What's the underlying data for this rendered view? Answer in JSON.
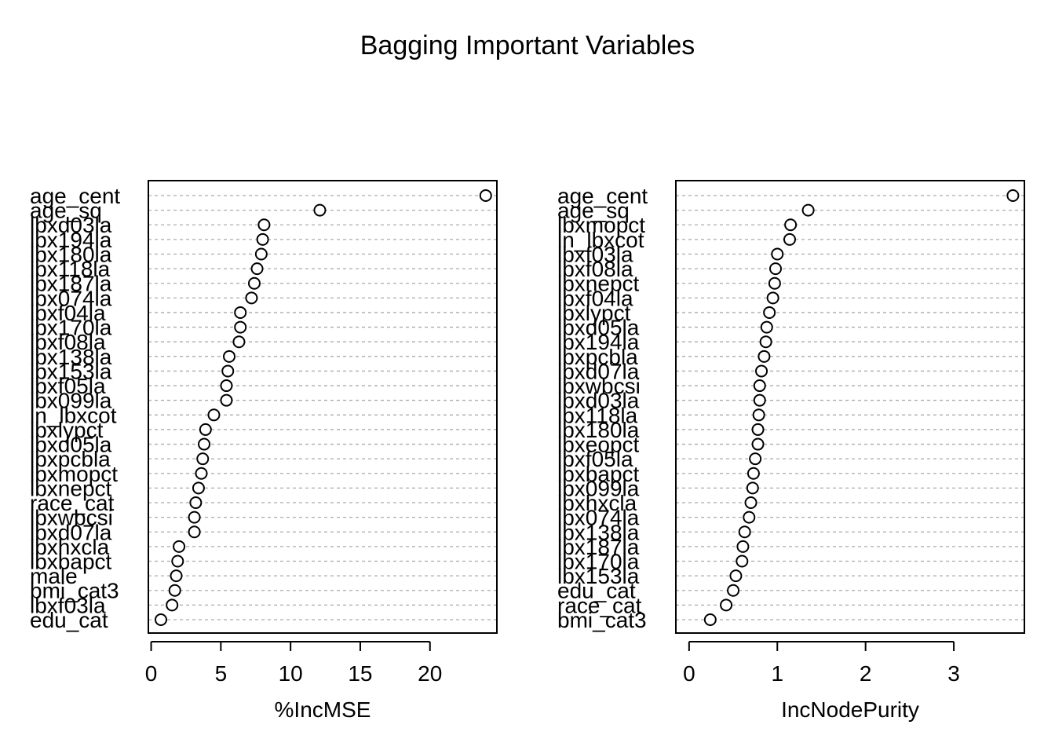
{
  "title": "Bagging Important Variables",
  "chart_data": [
    {
      "type": "scatter",
      "xlabel": "%IncMSE",
      "xlim": [
        -0.2,
        24.8
      ],
      "xticks": [
        0,
        5,
        10,
        15,
        20
      ],
      "grid": "dashed horizontal guide lines",
      "points": [
        {
          "label": "age_cent",
          "value": 24.0
        },
        {
          "label": "age_sq",
          "value": 12.1
        },
        {
          "label": "lbxd03la",
          "value": 8.1
        },
        {
          "label": "lbx194la",
          "value": 8.0
        },
        {
          "label": "lbx180la",
          "value": 7.9
        },
        {
          "label": "lbx118la",
          "value": 7.6
        },
        {
          "label": "lbx187la",
          "value": 7.4
        },
        {
          "label": "lbx074la",
          "value": 7.2
        },
        {
          "label": "lbxf04la",
          "value": 6.4
        },
        {
          "label": "lbx170la",
          "value": 6.4
        },
        {
          "label": "lbxf08la",
          "value": 6.3
        },
        {
          "label": "lbx138la",
          "value": 5.6
        },
        {
          "label": "lbx153la",
          "value": 5.5
        },
        {
          "label": "lbxf05la",
          "value": 5.4
        },
        {
          "label": "lbx099la",
          "value": 5.4
        },
        {
          "label": "ln_lbxcot",
          "value": 4.5
        },
        {
          "label": "lbxlypct",
          "value": 3.9
        },
        {
          "label": "lbxd05la",
          "value": 3.8
        },
        {
          "label": "lbxpcbla",
          "value": 3.7
        },
        {
          "label": "lbxmopct",
          "value": 3.6
        },
        {
          "label": "lbxnepct",
          "value": 3.4
        },
        {
          "label": "race_cat",
          "value": 3.2
        },
        {
          "label": "lbxwbcsi",
          "value": 3.1
        },
        {
          "label": "lbxd07la",
          "value": 3.1
        },
        {
          "label": "lbxhxcla",
          "value": 2.0
        },
        {
          "label": "lbxbapct",
          "value": 1.9
        },
        {
          "label": "male",
          "value": 1.8
        },
        {
          "label": "bmi_cat3",
          "value": 1.7
        },
        {
          "label": "lbxf03la",
          "value": 1.5
        },
        {
          "label": "edu_cat",
          "value": 0.7
        }
      ]
    },
    {
      "type": "scatter",
      "xlabel": "IncNodePurity",
      "xlim": [
        -0.15,
        3.8
      ],
      "xticks": [
        0,
        1,
        2,
        3
      ],
      "grid": "dashed horizontal guide lines",
      "points": [
        {
          "label": "age_cent",
          "value": 3.67
        },
        {
          "label": "age_sq",
          "value": 1.35
        },
        {
          "label": "lbxmopct",
          "value": 1.15
        },
        {
          "label": "ln_lbxcot",
          "value": 1.14
        },
        {
          "label": "lbxf03la",
          "value": 1.0
        },
        {
          "label": "lbxf08la",
          "value": 0.98
        },
        {
          "label": "lbxnepct",
          "value": 0.97
        },
        {
          "label": "lbxf04la",
          "value": 0.95
        },
        {
          "label": "lbxlypct",
          "value": 0.91
        },
        {
          "label": "lbxd05la",
          "value": 0.88
        },
        {
          "label": "lbx194la",
          "value": 0.87
        },
        {
          "label": "lbxpcbla",
          "value": 0.85
        },
        {
          "label": "lbxd07la",
          "value": 0.82
        },
        {
          "label": "lbxwbcsi",
          "value": 0.8
        },
        {
          "label": "lbxd03la",
          "value": 0.8
        },
        {
          "label": "lbx118la",
          "value": 0.79
        },
        {
          "label": "lbx180la",
          "value": 0.78
        },
        {
          "label": "lbxeopct",
          "value": 0.78
        },
        {
          "label": "lbxf05la",
          "value": 0.75
        },
        {
          "label": "lbxbapct",
          "value": 0.73
        },
        {
          "label": "lbx099la",
          "value": 0.72
        },
        {
          "label": "lbxhxcla",
          "value": 0.7
        },
        {
          "label": "lbx074la",
          "value": 0.68
        },
        {
          "label": "lbx138la",
          "value": 0.63
        },
        {
          "label": "lbx187la",
          "value": 0.61
        },
        {
          "label": "lbx170la",
          "value": 0.6
        },
        {
          "label": "lbx153la",
          "value": 0.53
        },
        {
          "label": "edu_cat",
          "value": 0.5
        },
        {
          "label": "race_cat",
          "value": 0.42
        },
        {
          "label": "bmi_cat3",
          "value": 0.24
        }
      ]
    }
  ]
}
